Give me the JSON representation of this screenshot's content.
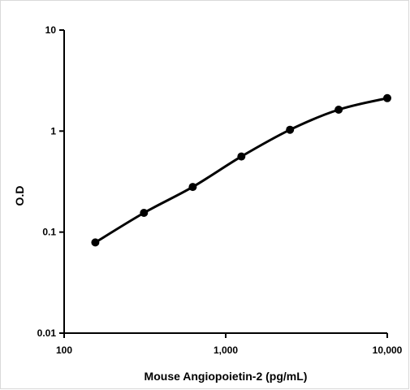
{
  "chart_data": {
    "type": "line",
    "title": "",
    "xlabel": "Mouse Angiopoietin-2 (pg/mL)",
    "ylabel": "O.D",
    "x_scale": "log",
    "y_scale": "log",
    "xlim": [
      100,
      10000
    ],
    "ylim": [
      0.01,
      10
    ],
    "x_ticks": [
      {
        "value": 100,
        "label": "100"
      },
      {
        "value": 1000,
        "label": "1,000"
      },
      {
        "value": 10000,
        "label": "10,000"
      }
    ],
    "y_ticks": [
      {
        "value": 10,
        "label": "10"
      },
      {
        "value": 1,
        "label": "1"
      },
      {
        "value": 0.1,
        "label": "0.1"
      },
      {
        "value": 0.01,
        "label": "0.01"
      }
    ],
    "grid": false,
    "legend": "none",
    "series": [
      {
        "x": [
          156,
          312,
          625,
          1250,
          2500,
          5000,
          10000
        ],
        "y": [
          0.079,
          0.155,
          0.28,
          0.56,
          1.03,
          1.63,
          2.12
        ]
      }
    ],
    "colors": {
      "line": "#000000",
      "marker": "#000000"
    }
  }
}
